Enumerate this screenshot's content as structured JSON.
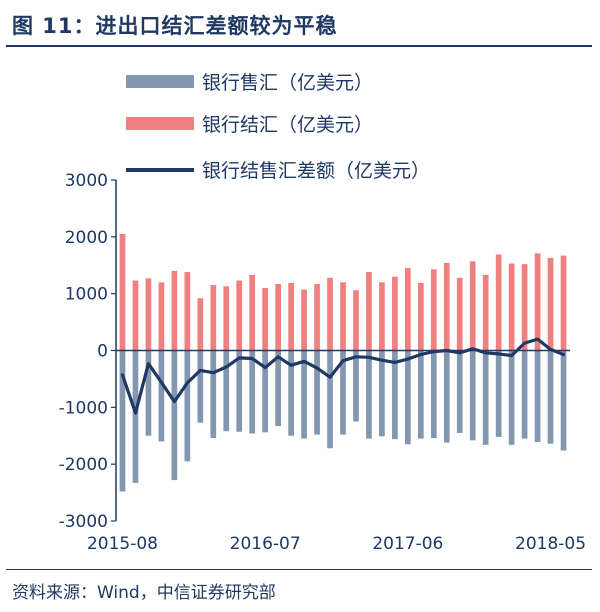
{
  "title": "图 11：进出口结汇差额较为平稳",
  "source": "资料来源：Wind，中信证券研究部",
  "colors": {
    "sell": "#8497b0",
    "settle": "#f08080",
    "net": "#1f3864",
    "text": "#1f3864"
  },
  "chart_data": {
    "type": "bar",
    "ylim": [
      -3000,
      3000
    ],
    "yticks": [
      "3000",
      "2000",
      "1000",
      "0",
      "-1000",
      "-2000",
      "-3000"
    ],
    "xticks": [
      "2015-08",
      "2016-07",
      "2017-06",
      "2018-05"
    ],
    "x": [
      "2015-08",
      "2015-09",
      "2015-10",
      "2015-11",
      "2015-12",
      "2016-01",
      "2016-02",
      "2016-03",
      "2016-04",
      "2016-05",
      "2016-06",
      "2016-07",
      "2016-08",
      "2016-09",
      "2016-10",
      "2016-11",
      "2016-12",
      "2017-01",
      "2017-02",
      "2017-03",
      "2017-04",
      "2017-05",
      "2017-06",
      "2017-07",
      "2017-08",
      "2017-09",
      "2017-10",
      "2017-11",
      "2017-12",
      "2018-01",
      "2018-02",
      "2018-03",
      "2018-04",
      "2018-05",
      "2018-06"
    ],
    "legend_placement": "top-left",
    "series": [
      {
        "name": "银行售汇（亿美元）",
        "kind": "bar",
        "values": [
          -2480,
          -2330,
          -1500,
          -1600,
          -2280,
          -1950,
          -1270,
          -1540,
          -1420,
          -1430,
          -1460,
          -1440,
          -1330,
          -1500,
          -1550,
          -1480,
          -1720,
          -1480,
          -1250,
          -1550,
          -1510,
          -1560,
          -1650,
          -1550,
          -1540,
          -1620,
          -1450,
          -1580,
          -1660,
          -1520,
          -1660,
          -1550,
          -1610,
          -1640,
          -1760
        ]
      },
      {
        "name": "银行结汇（亿美元）",
        "kind": "bar",
        "values": [
          2050,
          1230,
          1270,
          1200,
          1400,
          1380,
          920,
          1150,
          1130,
          1230,
          1330,
          1100,
          1170,
          1190,
          1070,
          1170,
          1280,
          1200,
          1060,
          1380,
          1200,
          1300,
          1450,
          1190,
          1430,
          1540,
          1280,
          1570,
          1330,
          1690,
          1530,
          1520,
          1710,
          1630,
          1670
        ]
      },
      {
        "name": "银行结售汇差额（亿美元）",
        "kind": "line",
        "values": [
          -430,
          -1100,
          -230,
          -560,
          -900,
          -570,
          -350,
          -390,
          -290,
          -130,
          -140,
          -300,
          -110,
          -260,
          -190,
          -310,
          -470,
          -180,
          -110,
          -120,
          -170,
          -210,
          -150,
          -70,
          -20,
          0,
          -40,
          30,
          -40,
          -60,
          -90,
          130,
          200,
          20,
          -70
        ]
      }
    ]
  }
}
